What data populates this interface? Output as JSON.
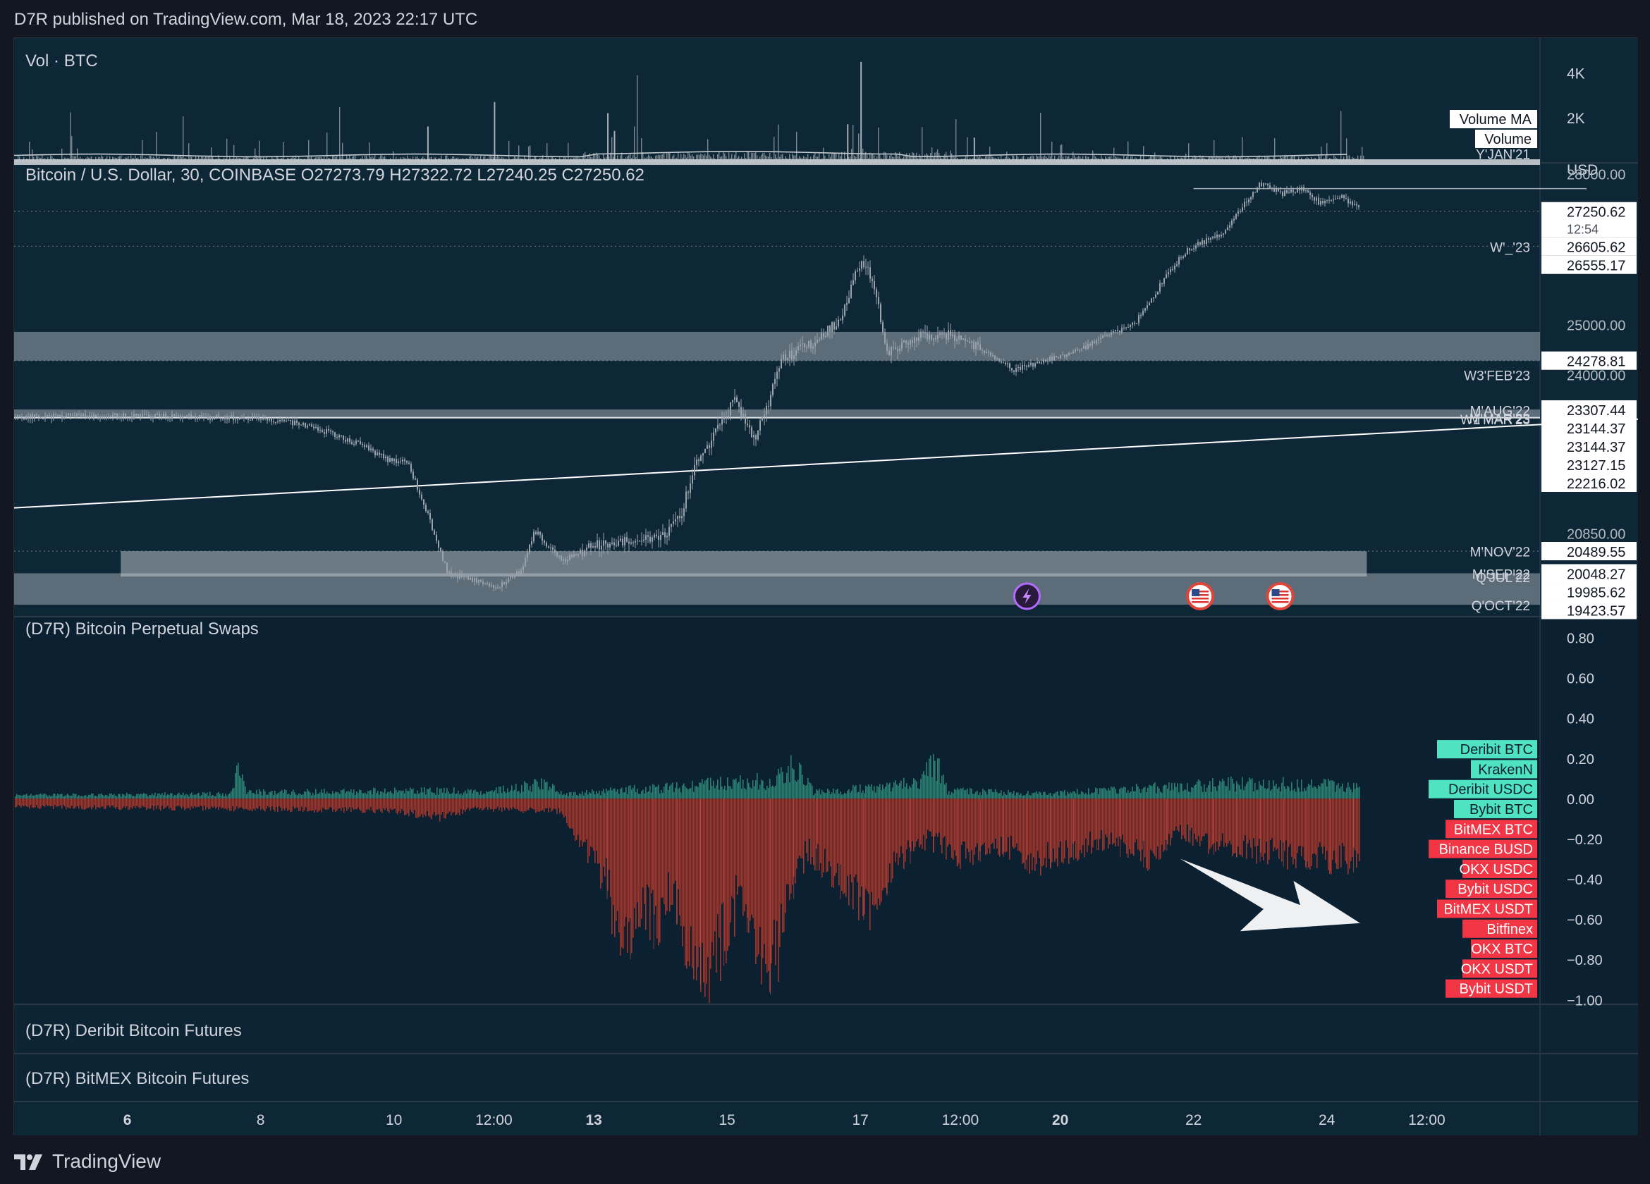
{
  "header": {
    "publish_text": "D7R published on TradingView.com, Mar 18, 2023 22:17 UTC"
  },
  "footer": {
    "brand": "TradingView"
  },
  "colors": {
    "background": "#0d2535",
    "candles": "#9aa3ab",
    "zones": "#c8ced3",
    "negative": "#c0392b",
    "positive": "#2e8b7a",
    "label_positive": "#4fe3c1",
    "label_negative": "#f23645",
    "axis_text": "#d1d4dc"
  },
  "chart_data": [
    {
      "type": "bar",
      "pane": "volume",
      "title": "Vol · BTC",
      "y_ticks": [
        "4K",
        "2K"
      ],
      "legend": [
        "Volume MA",
        "Volume"
      ],
      "approx_values": {
        "typical": 250,
        "spike_max": 4500,
        "ma_level": 300
      }
    },
    {
      "type": "line",
      "pane": "price",
      "title": "Bitcoin / U.S. Dollar, 30, COINBASE",
      "ohlc": {
        "o_label": "O27273.79",
        "h_label": "H27322.72",
        "l_label": "L27240.25",
        "c_label": "C27250.62"
      },
      "currency": "USD",
      "ylim": [
        19200,
        28200
      ],
      "y_ticks": [
        "28000.00",
        "25000.00",
        "24000.00",
        "20850.00"
      ],
      "price_labels": [
        {
          "value": 27250.62,
          "text": "27250.62",
          "sub": "12:54"
        },
        {
          "value": 26605.62,
          "text": "26605.62"
        },
        {
          "value": 26555.17,
          "text": "26555.17"
        },
        {
          "value": 24278.81,
          "text": "24278.81"
        },
        {
          "value": 23307.44,
          "text": "23307.44"
        },
        {
          "value": 23144.37,
          "text": "23144.37"
        },
        {
          "value": 23144.37,
          "text": "23144.37"
        },
        {
          "value": 23127.15,
          "text": "23127.15"
        },
        {
          "value": 22216.02,
          "text": "22216.02"
        },
        {
          "value": 20489.55,
          "text": "20489.55"
        },
        {
          "value": 20048.27,
          "text": "20048.27"
        },
        {
          "value": 19985.62,
          "text": "19985.62"
        },
        {
          "value": 19423.57,
          "text": "19423.57"
        }
      ],
      "level_labels": [
        {
          "text": "Y'JAN'21",
          "value": 28400
        },
        {
          "text": "W'_'23",
          "value": 26555
        },
        {
          "text": "W3'FEB'23",
          "value": 24000
        },
        {
          "text": "M'AUG'22",
          "value": 23300
        },
        {
          "text": "M'MAR'23",
          "value": 23144
        },
        {
          "text": "W1'MAR'23",
          "value": 23127
        },
        {
          "text": "M'NOV'22",
          "value": 20500
        },
        {
          "text": "M'SEP'22",
          "value": 20048
        },
        {
          "text": "Q'JUL'22",
          "value": 19985
        },
        {
          "text": "Q'OCT'22",
          "value": 19423
        }
      ],
      "series_path": [
        [
          0,
          23150
        ],
        [
          1.2,
          23180
        ],
        [
          2.2,
          23170
        ],
        [
          3.2,
          23150
        ],
        [
          4.0,
          23100
        ],
        [
          4.5,
          22950
        ],
        [
          5.2,
          22600
        ],
        [
          5.6,
          22300
        ],
        [
          5.9,
          22250
        ],
        [
          6.2,
          21200
        ],
        [
          6.5,
          20050
        ],
        [
          6.9,
          19900
        ],
        [
          7.2,
          19750
        ],
        [
          7.6,
          20100
        ],
        [
          7.8,
          20900
        ],
        [
          8.2,
          20300
        ],
        [
          8.7,
          20600
        ],
        [
          9.2,
          20700
        ],
        [
          9.7,
          20750
        ],
        [
          10.0,
          21200
        ],
        [
          10.2,
          22200
        ],
        [
          10.5,
          22800
        ],
        [
          10.8,
          23500
        ],
        [
          11.1,
          22700
        ],
        [
          11.35,
          23600
        ],
        [
          11.5,
          24300
        ],
        [
          12.0,
          24650
        ],
        [
          12.4,
          25100
        ],
        [
          12.7,
          26300
        ],
        [
          12.9,
          25800
        ],
        [
          13.1,
          24400
        ],
        [
          13.5,
          24750
        ],
        [
          14.0,
          24800
        ],
        [
          14.5,
          24500
        ],
        [
          15.0,
          24100
        ],
        [
          15.5,
          24300
        ],
        [
          16.0,
          24500
        ],
        [
          16.4,
          24800
        ],
        [
          16.8,
          25000
        ],
        [
          17.0,
          25400
        ],
        [
          17.3,
          26000
        ],
        [
          17.6,
          26500
        ],
        [
          18.1,
          26800
        ],
        [
          18.4,
          27300
        ],
        [
          18.7,
          27800
        ],
        [
          19.0,
          27600
        ],
        [
          19.3,
          27700
        ],
        [
          19.6,
          27400
        ],
        [
          19.9,
          27550
        ],
        [
          20.2,
          27300
        ]
      ],
      "horizontal_line": 27700,
      "trendline": [
        [
          0,
          21350
        ],
        [
          26.1,
          23240
        ]
      ],
      "zones": [
        {
          "from": 24278.81,
          "to": 24850,
          "x_start": 0
        },
        {
          "from": 23127,
          "to": 23307.44,
          "x_start": 0
        },
        {
          "from": 23144.37,
          "to": 23144.37,
          "x_start": 0,
          "kind": "line"
        },
        {
          "from": 19985,
          "to": 20489.55,
          "x_start": 1.6,
          "x_end": 20.3,
          "kind": "inner"
        },
        {
          "from": 19423.57,
          "to": 20048.27,
          "x_start": 0
        }
      ],
      "event_markers": [
        "lightning",
        "us-flag",
        "us-flag"
      ]
    },
    {
      "type": "bar",
      "pane": "indicator",
      "title": "(D7R) Bitcoin Perpetual Swaps",
      "ylim": [
        -1.02,
        0.9
      ],
      "y_ticks": [
        "0.80",
        "0.60",
        "0.40",
        "0.20",
        "0.00",
        "−0.20",
        "−0.40",
        "−0.60",
        "−0.80",
        "−1.00"
      ],
      "legend": [
        {
          "name": "Deribit BTC",
          "sign": "positive"
        },
        {
          "name": "KrakenN",
          "sign": "positive"
        },
        {
          "name": "Deribit USDC",
          "sign": "positive"
        },
        {
          "name": "Bybit BTC",
          "sign": "positive"
        },
        {
          "name": "BitMEX BTC",
          "sign": "negative"
        },
        {
          "name": "Binance BUSD",
          "sign": "negative"
        },
        {
          "name": "OKX USDC",
          "sign": "negative"
        },
        {
          "name": "Bybit USDC",
          "sign": "negative"
        },
        {
          "name": "BitMEX USDT",
          "sign": "negative"
        },
        {
          "name": "Bitfinex",
          "sign": "negative"
        },
        {
          "name": "OKX BTC",
          "sign": "negative"
        },
        {
          "name": "OKX USDT",
          "sign": "negative"
        },
        {
          "name": "Bybit USDT",
          "sign": "negative"
        }
      ],
      "envelope_negative": [
        [
          0,
          -0.05
        ],
        [
          5.4,
          -0.07
        ],
        [
          6.4,
          -0.11
        ],
        [
          6.9,
          -0.06
        ],
        [
          8.2,
          -0.08
        ],
        [
          8.9,
          -0.5
        ],
        [
          9.1,
          -1.0
        ],
        [
          9.4,
          -0.6
        ],
        [
          9.6,
          -0.75
        ],
        [
          9.9,
          -0.55
        ],
        [
          10.1,
          -0.85
        ],
        [
          10.5,
          -1.0
        ],
        [
          10.9,
          -0.55
        ],
        [
          11.2,
          -0.9
        ],
        [
          11.4,
          -1.0
        ],
        [
          11.6,
          -0.6
        ],
        [
          11.9,
          -0.3
        ],
        [
          12.4,
          -0.5
        ],
        [
          12.9,
          -0.65
        ],
        [
          13.2,
          -0.4
        ],
        [
          13.7,
          -0.25
        ],
        [
          14.2,
          -0.35
        ],
        [
          14.8,
          -0.28
        ],
        [
          15.3,
          -0.38
        ],
        [
          15.8,
          -0.32
        ],
        [
          16.3,
          -0.25
        ],
        [
          17.0,
          -0.35
        ],
        [
          17.5,
          -0.2
        ],
        [
          18.0,
          -0.28
        ],
        [
          18.5,
          -0.3
        ],
        [
          19.2,
          -0.35
        ],
        [
          20.2,
          -0.37
        ]
      ],
      "envelope_positive": [
        [
          0,
          0.02
        ],
        [
          3.2,
          0.03
        ],
        [
          3.35,
          0.16
        ],
        [
          3.5,
          0.04
        ],
        [
          6.5,
          0.05
        ],
        [
          7.0,
          0.04
        ],
        [
          8.0,
          0.1
        ],
        [
          8.3,
          0.03
        ],
        [
          11.4,
          0.12
        ],
        [
          11.7,
          0.2
        ],
        [
          12.0,
          0.04
        ],
        [
          13.6,
          0.1
        ],
        [
          13.8,
          0.28
        ],
        [
          14.0,
          0.05
        ],
        [
          15.5,
          0.03
        ],
        [
          17.5,
          0.08
        ],
        [
          18.5,
          0.1
        ],
        [
          20.2,
          0.08
        ]
      ]
    },
    {
      "type": "line",
      "pane": "deribit-futures",
      "title": "(D7R) Deribit Bitcoin Futures"
    },
    {
      "type": "line",
      "pane": "bitmex-futures",
      "title": "(D7R) BitMEX Bitcoin Futures"
    }
  ],
  "x_axis": {
    "ticks": [
      {
        "label": "6",
        "pos": 1.7,
        "bold": true
      },
      {
        "label": "8",
        "pos": 3.7
      },
      {
        "label": "10",
        "pos": 5.7
      },
      {
        "label": "12:00",
        "pos": 7.2
      },
      {
        "label": "13",
        "pos": 8.7,
        "bold": true
      },
      {
        "label": "15",
        "pos": 10.7
      },
      {
        "label": "17",
        "pos": 12.7
      },
      {
        "label": "12:00",
        "pos": 14.2
      },
      {
        "label": "20",
        "pos": 15.7,
        "bold": true
      },
      {
        "label": "22",
        "pos": 17.7
      },
      {
        "label": "24",
        "pos": 19.7
      },
      {
        "label": "12:00",
        "pos": 21.2
      }
    ]
  }
}
